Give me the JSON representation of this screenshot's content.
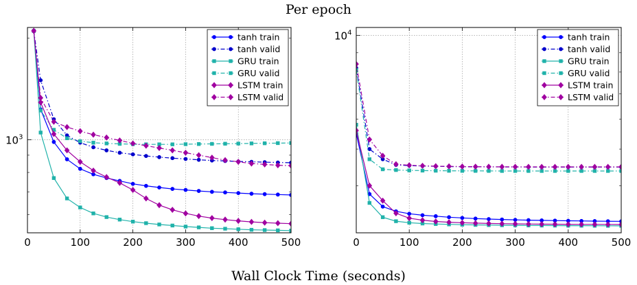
{
  "figure": {
    "title": "Per epoch",
    "xlabel": "Wall Clock Time (seconds)"
  },
  "chart_data": [
    {
      "type": "line",
      "yscale": "log",
      "xlim": [
        0,
        500
      ],
      "ylim": [
        530,
        2150
      ],
      "xticks": [
        "0",
        "100",
        "200",
        "300",
        "400",
        "500"
      ],
      "yticks": [
        {
          "value": 1000,
          "label": "10",
          "exp": "3"
        }
      ],
      "grid": true,
      "legend": "top-right",
      "series": [
        {
          "name": "tanh train",
          "color": "#0000ff",
          "dash": "solid",
          "marker": "circle",
          "x": [
            12,
            25,
            50,
            75,
            100,
            125,
            150,
            175,
            200,
            225,
            250,
            275,
            300,
            325,
            350,
            375,
            400,
            425,
            450,
            475,
            500
          ],
          "y": [
            2100,
            1230,
            985,
            875,
            820,
            790,
            770,
            755,
            740,
            730,
            722,
            715,
            710,
            705,
            701,
            698,
            695,
            692,
            690,
            688,
            686
          ]
        },
        {
          "name": "tanh valid",
          "color": "#0000cc",
          "dash": "dashdot",
          "marker": "circle",
          "x": [
            12,
            25,
            50,
            75,
            100,
            125,
            150,
            175,
            200,
            225,
            250,
            275,
            300,
            325,
            350,
            375,
            400,
            425,
            450,
            475,
            500
          ],
          "y": [
            2100,
            1500,
            1150,
            1030,
            980,
            950,
            930,
            915,
            905,
            895,
            888,
            882,
            877,
            872,
            868,
            865,
            862,
            860,
            858,
            856,
            855
          ]
        },
        {
          "name": "GRU train",
          "color": "#20b2aa",
          "dash": "solid",
          "marker": "square",
          "x": [
            12,
            25,
            50,
            75,
            100,
            125,
            150,
            175,
            200,
            225,
            250,
            275,
            300,
            325,
            350,
            375,
            400,
            425,
            450,
            475,
            500
          ],
          "y": [
            2100,
            1050,
            770,
            670,
            630,
            605,
            590,
            580,
            572,
            566,
            561,
            557,
            553,
            550,
            547,
            545,
            543,
            541,
            540,
            539,
            538
          ]
        },
        {
          "name": "GRU valid",
          "color": "#20b2aa",
          "dash": "dashdot",
          "marker": "square",
          "x": [
            12,
            25,
            50,
            75,
            100,
            125,
            150,
            175,
            200,
            225,
            250,
            275,
            300,
            325,
            350,
            375,
            400,
            425,
            450,
            475,
            500
          ],
          "y": [
            2100,
            1220,
            1070,
            1010,
            990,
            980,
            975,
            972,
            970,
            969,
            969,
            969,
            970,
            971,
            972,
            973,
            974,
            975,
            976,
            977,
            978
          ]
        },
        {
          "name": "LSTM train",
          "color": "#a000a0",
          "dash": "solid",
          "marker": "diamond",
          "x": [
            12,
            25,
            50,
            75,
            100,
            125,
            150,
            175,
            200,
            225,
            250,
            275,
            300,
            325,
            350,
            375,
            400,
            425,
            450,
            475,
            500
          ],
          "y": [
            2100,
            1290,
            1040,
            930,
            860,
            810,
            775,
            745,
            710,
            670,
            640,
            620,
            605,
            594,
            586,
            580,
            575,
            571,
            568,
            566,
            564
          ]
        },
        {
          "name": "LSTM valid",
          "color": "#a000a0",
          "dash": "dashdot",
          "marker": "diamond",
          "x": [
            12,
            25,
            50,
            75,
            100,
            125,
            150,
            175,
            200,
            225,
            250,
            275,
            300,
            325,
            350,
            375,
            400,
            425,
            450,
            475,
            500
          ],
          "y": [
            2100,
            1330,
            1130,
            1090,
            1060,
            1035,
            1015,
            995,
            975,
            960,
            945,
            930,
            915,
            900,
            885,
            870,
            860,
            850,
            845,
            840,
            838
          ]
        }
      ]
    },
    {
      "type": "line",
      "yscale": "log",
      "xlim": [
        0,
        500
      ],
      "ylim": [
        3000,
        10500
      ],
      "xticks": [
        "0",
        "100",
        "200",
        "300",
        "400",
        "500"
      ],
      "yticks": [
        {
          "value": 10000,
          "label": "10",
          "exp": "4"
        }
      ],
      "grid": true,
      "legend": "top-right",
      "series": [
        {
          "name": "tanh train",
          "color": "#0000ff",
          "dash": "solid",
          "marker": "circle",
          "x": [
            0,
            25,
            50,
            75,
            100,
            125,
            150,
            175,
            200,
            225,
            250,
            275,
            300,
            325,
            350,
            375,
            400,
            425,
            450,
            475,
            500
          ],
          "y": [
            5500,
            3800,
            3520,
            3420,
            3370,
            3340,
            3320,
            3300,
            3285,
            3272,
            3262,
            3254,
            3247,
            3241,
            3236,
            3232,
            3228,
            3225,
            3222,
            3219,
            3217
          ]
        },
        {
          "name": "tanh valid",
          "color": "#0000cc",
          "dash": "dashdot",
          "marker": "circle",
          "x": [
            0,
            25,
            50,
            75,
            100,
            125,
            150,
            175,
            200,
            225,
            250,
            275,
            300,
            325,
            350,
            375,
            400,
            425,
            450,
            475,
            500
          ],
          "y": [
            8200,
            5000,
            4700,
            4540,
            4520,
            4510,
            4500,
            4495,
            4490,
            4487,
            4485,
            4483,
            4482,
            4481,
            4480,
            4480,
            4480,
            4480,
            4480,
            4480,
            4480
          ]
        },
        {
          "name": "GRU train",
          "color": "#20b2aa",
          "dash": "solid",
          "marker": "square",
          "x": [
            0,
            25,
            50,
            75,
            100,
            125,
            150,
            175,
            200,
            225,
            250,
            275,
            300,
            325,
            350,
            375,
            400,
            425,
            450,
            475,
            500
          ],
          "y": [
            5800,
            3600,
            3300,
            3220,
            3190,
            3175,
            3165,
            3158,
            3152,
            3148,
            3145,
            3142,
            3140,
            3138,
            3136,
            3135,
            3134,
            3133,
            3132,
            3131,
            3130
          ]
        },
        {
          "name": "GRU valid",
          "color": "#20b2aa",
          "dash": "dashdot",
          "marker": "square",
          "x": [
            0,
            25,
            50,
            75,
            100,
            125,
            150,
            175,
            200,
            225,
            250,
            275,
            300,
            325,
            350,
            375,
            400,
            425,
            450,
            475,
            500
          ],
          "y": [
            8100,
            4700,
            4420,
            4400,
            4390,
            4385,
            4382,
            4380,
            4378,
            4377,
            4376,
            4375,
            4375,
            4375,
            4375,
            4375,
            4375,
            4375,
            4375,
            4375,
            4375
          ]
        },
        {
          "name": "LSTM train",
          "color": "#a000a0",
          "dash": "solid",
          "marker": "diamond",
          "x": [
            0,
            25,
            50,
            75,
            100,
            125,
            150,
            175,
            200,
            225,
            250,
            275,
            300,
            325,
            350,
            375,
            400,
            425,
            450,
            475,
            500
          ],
          "y": [
            5600,
            4000,
            3650,
            3380,
            3280,
            3240,
            3215,
            3200,
            3190,
            3182,
            3176,
            3172,
            3168,
            3165,
            3163,
            3161,
            3160,
            3159,
            3158,
            3157,
            3156
          ]
        },
        {
          "name": "LSTM valid",
          "color": "#a000a0",
          "dash": "dashdot",
          "marker": "diamond",
          "x": [
            0,
            25,
            50,
            75,
            100,
            125,
            150,
            175,
            200,
            225,
            250,
            275,
            300,
            325,
            350,
            375,
            400,
            425,
            450,
            475,
            500
          ],
          "y": [
            8400,
            5300,
            4800,
            4560,
            4530,
            4515,
            4505,
            4500,
            4495,
            4492,
            4490,
            4488,
            4487,
            4486,
            4485,
            4485,
            4485,
            4485,
            4485,
            4485,
            4485
          ]
        }
      ]
    }
  ]
}
